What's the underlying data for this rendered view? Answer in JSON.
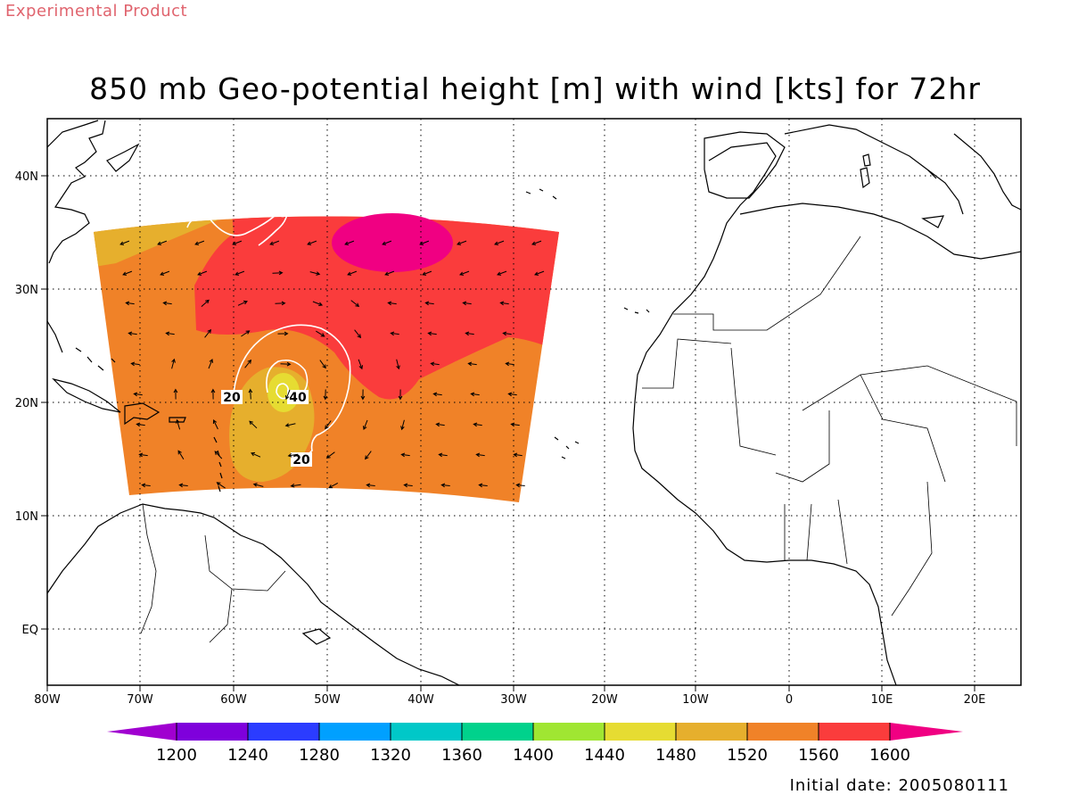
{
  "header": {
    "tag": "Experimental Product",
    "title": "850 mb Geo-potential height [m] with wind [kts] for 72hr"
  },
  "footer": {
    "initial_date": "Initial date: 2005080111"
  },
  "map": {
    "lon_ticks": [
      "80W",
      "70W",
      "60W",
      "50W",
      "40W",
      "30W",
      "20W",
      "10W",
      "0",
      "10E",
      "20E"
    ],
    "lat_ticks": [
      "40N",
      "30N",
      "20N",
      "10N",
      "EQ"
    ],
    "contour_labels": [
      "20",
      "40",
      "20"
    ],
    "grid": "dotted"
  },
  "colorbar": {
    "colors": [
      "#a000d0",
      "#7f00dc",
      "#2b3cff",
      "#00a0ff",
      "#00c8c8",
      "#00d28c",
      "#a0e632",
      "#e6dc32",
      "#e6af2d",
      "#f08228",
      "#fa3c3c",
      "#f00082"
    ],
    "labels": [
      "1200",
      "1240",
      "1280",
      "1320",
      "1360",
      "1400",
      "1440",
      "1480",
      "1520",
      "1560",
      "1600"
    ]
  }
}
